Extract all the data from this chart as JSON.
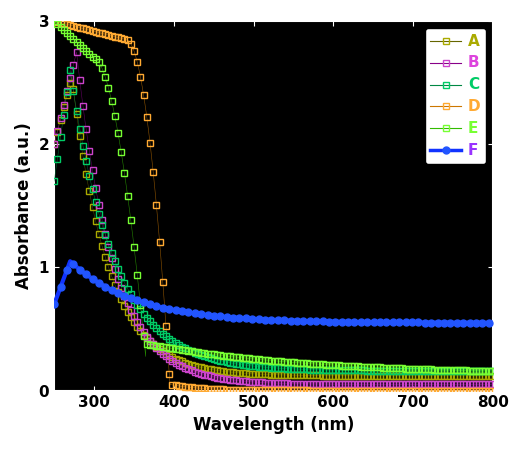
{
  "title": "",
  "xlabel": "Wavelength (nm)",
  "ylabel": "Absorbance (a.u.)",
  "xlim": [
    250,
    800
  ],
  "ylim": [
    0,
    3.0
  ],
  "plot_bg": "#000000",
  "fig_bg": "#ffffff",
  "series_colors": {
    "A": {
      "line": "#666600",
      "marker": "#aaaa00"
    },
    "B": {
      "line": "#880088",
      "marker": "#cc44cc"
    },
    "C": {
      "line": "#008844",
      "marker": "#00cc66"
    },
    "D": {
      "line": "#cc7700",
      "marker": "#ffaa33"
    },
    "E": {
      "line": "#33bb00",
      "marker": "#77ff33"
    },
    "F": {
      "line": "#1133ff",
      "marker": "#2255ff"
    }
  },
  "label_colors": {
    "A": "#aaaa00",
    "B": "#dd44dd",
    "C": "#00cc66",
    "D": "#ffaa33",
    "E": "#77ff33",
    "F": "#9933ff"
  },
  "xticks": [
    300,
    400,
    500,
    600,
    700,
    800
  ],
  "yticks": [
    0,
    1,
    2,
    3
  ],
  "marker_every": 8
}
